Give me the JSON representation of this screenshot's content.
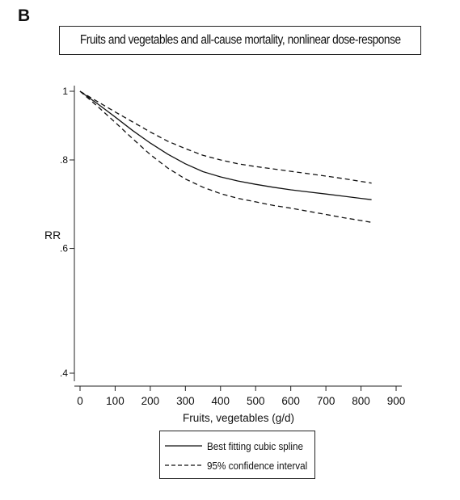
{
  "panel_label": "B",
  "chart_data": {
    "type": "line",
    "title": "Fruits and vegetables and all-cause mortality, nonlinear dose-response",
    "xlabel": "Fruits, vegetables (g/d)",
    "ylabel": "RR",
    "xlim": [
      0,
      900
    ],
    "ylim": [
      0.4,
      1.0
    ],
    "y_scale": "log",
    "grid": false,
    "legend_position": "bottom",
    "x_ticks": [
      0,
      100,
      200,
      300,
      400,
      500,
      600,
      700,
      800,
      900
    ],
    "x_tick_labels": [
      "0",
      "100",
      "200",
      "300",
      "400",
      "500",
      "600",
      "700",
      "800",
      "900"
    ],
    "y_ticks": [
      0.4,
      0.6,
      0.8,
      1.0
    ],
    "y_tick_labels": [
      ".4",
      ".6",
      ".8",
      "1"
    ],
    "x": [
      0,
      50,
      100,
      150,
      200,
      250,
      300,
      350,
      400,
      450,
      500,
      550,
      600,
      650,
      700,
      750,
      800,
      830
    ],
    "series": [
      {
        "name": "Best fitting cubic spline",
        "style": "solid",
        "values": [
          1.0,
          0.96,
          0.92,
          0.88,
          0.845,
          0.815,
          0.79,
          0.77,
          0.757,
          0.747,
          0.739,
          0.732,
          0.726,
          0.721,
          0.716,
          0.711,
          0.706,
          0.703
        ]
      },
      {
        "name": "95% confidence interval",
        "style": "dashed",
        "values": [
          1.0,
          0.967,
          0.935,
          0.905,
          0.876,
          0.85,
          0.83,
          0.812,
          0.8,
          0.79,
          0.783,
          0.777,
          0.771,
          0.765,
          0.759,
          0.753,
          0.746,
          0.742
        ]
      },
      {
        "name": "",
        "style": "dashed",
        "values": [
          1.0,
          0.952,
          0.904,
          0.857,
          0.814,
          0.779,
          0.752,
          0.732,
          0.717,
          0.706,
          0.698,
          0.69,
          0.684,
          0.677,
          0.67,
          0.663,
          0.657,
          0.653
        ]
      }
    ],
    "legend": [
      {
        "label": "Best fitting cubic spline",
        "style": "solid"
      },
      {
        "label": "95% confidence interval",
        "style": "dashed"
      }
    ]
  }
}
